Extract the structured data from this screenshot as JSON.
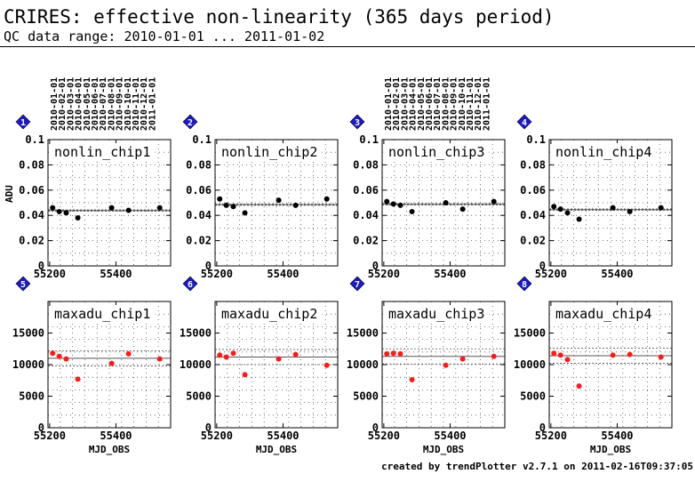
{
  "header": {
    "title": "CRIRES: effective non-linearity (365 days period)",
    "subtitle": "QC data range: 2010-01-01 ... 2011-01-02"
  },
  "footer": "created by trendPlotter v2.7.1 on 2011-02-16T09:37:05",
  "date_ticks": [
    "2010-01-01",
    "2010-02-01",
    "2010-03-01",
    "2010-04-01",
    "2010-05-01",
    "2010-06-01",
    "2010-07-01",
    "2010-08-01",
    "2010-09-01",
    "2010-10-01",
    "2010-11-01",
    "2010-12-01",
    "2011-01-01"
  ],
  "colors": {
    "top_markers": "#000000",
    "bottom_markers": "#ff1a1a",
    "badge": "#1a1acc"
  },
  "chart_data": [
    {
      "type": "scatter",
      "badge": "1",
      "title": "nonlin_chip1",
      "ylabel": "ADU",
      "xlabel": "",
      "xlim": [
        55195,
        55565
      ],
      "ylim": [
        0,
        0.1
      ],
      "yticks": [
        "0",
        "0.02",
        "0.04",
        "0.06",
        "0.08",
        "0.1"
      ],
      "xticks": [
        "55200",
        "55400"
      ],
      "ref_line": 0.0438,
      "x": [
        55209,
        55229,
        55250,
        55285,
        55387,
        55438,
        55532
      ],
      "y": [
        0.046,
        0.043,
        0.042,
        0.038,
        0.046,
        0.044,
        0.046
      ]
    },
    {
      "type": "scatter",
      "badge": "2",
      "title": "nonlin_chip2",
      "ylabel": "",
      "xlabel": "",
      "xlim": [
        55195,
        55565
      ],
      "ylim": [
        0,
        0.1
      ],
      "yticks": [
        "0",
        "0.02",
        "0.04",
        "0.06",
        "0.08",
        "0.1"
      ],
      "xticks": [
        "55200",
        "55400"
      ],
      "ref_line": 0.0485,
      "x": [
        55209,
        55229,
        55250,
        55285,
        55387,
        55438,
        55532
      ],
      "y": [
        0.053,
        0.048,
        0.047,
        0.042,
        0.052,
        0.048,
        0.053
      ]
    },
    {
      "type": "scatter",
      "badge": "3",
      "title": "nonlin_chip3",
      "ylabel": "",
      "xlabel": "",
      "xlim": [
        55195,
        55565
      ],
      "ylim": [
        0,
        0.1
      ],
      "yticks": [
        "0",
        "0.02",
        "0.04",
        "0.06",
        "0.08",
        "0.1"
      ],
      "xticks": [
        "55200",
        "55400"
      ],
      "ref_line": 0.0488,
      "x": [
        55209,
        55229,
        55250,
        55285,
        55387,
        55438,
        55532
      ],
      "y": [
        0.051,
        0.049,
        0.048,
        0.043,
        0.05,
        0.045,
        0.051
      ]
    },
    {
      "type": "scatter",
      "badge": "4",
      "title": "nonlin_chip4",
      "ylabel": "",
      "xlabel": "",
      "xlim": [
        55195,
        55565
      ],
      "ylim": [
        0,
        0.1
      ],
      "yticks": [
        "0",
        "0.02",
        "0.04",
        "0.06",
        "0.08",
        "0.1"
      ],
      "xticks": [
        "55200",
        "55400"
      ],
      "ref_line": 0.0445,
      "x": [
        55209,
        55229,
        55250,
        55285,
        55387,
        55438,
        55532
      ],
      "y": [
        0.047,
        0.045,
        0.042,
        0.037,
        0.046,
        0.043,
        0.046
      ]
    },
    {
      "type": "scatter",
      "badge": "5",
      "title": "maxadu_chip1",
      "ylabel": "",
      "xlabel": "MJD_OBS",
      "xlim": [
        55195,
        55565
      ],
      "ylim": [
        0,
        20000
      ],
      "yticks": [
        "0",
        "5000",
        "10000",
        "15000"
      ],
      "xticks": [
        "55200",
        "55400"
      ],
      "ref_line": 11000,
      "x": [
        55209,
        55229,
        55250,
        55285,
        55387,
        55438,
        55532
      ],
      "y": [
        11800,
        11300,
        10900,
        7700,
        10200,
        11700,
        10900
      ]
    },
    {
      "type": "scatter",
      "badge": "6",
      "title": "maxadu_chip2",
      "ylabel": "",
      "xlabel": "MJD_OBS",
      "xlim": [
        55195,
        55565
      ],
      "ylim": [
        0,
        20000
      ],
      "yticks": [
        "0",
        "5000",
        "10000",
        "15000"
      ],
      "xticks": [
        "55200",
        "55400"
      ],
      "ref_line": 11200,
      "x": [
        55209,
        55229,
        55250,
        55285,
        55387,
        55438,
        55532
      ],
      "y": [
        11500,
        11200,
        11800,
        8400,
        10900,
        11600,
        9900
      ]
    },
    {
      "type": "scatter",
      "badge": "7",
      "title": "maxadu_chip3",
      "ylabel": "",
      "xlabel": "MJD_OBS",
      "xlim": [
        55195,
        55565
      ],
      "ylim": [
        0,
        20000
      ],
      "yticks": [
        "0",
        "5000",
        "10000",
        "15000"
      ],
      "xticks": [
        "55200",
        "55400"
      ],
      "ref_line": 11300,
      "x": [
        55209,
        55229,
        55250,
        55285,
        55387,
        55438,
        55532
      ],
      "y": [
        11700,
        11800,
        11700,
        7600,
        9900,
        10900,
        11300
      ]
    },
    {
      "type": "scatter",
      "badge": "8",
      "title": "maxadu_chip4",
      "ylabel": "",
      "xlabel": "MJD_OBS",
      "xlim": [
        55195,
        55565
      ],
      "ylim": [
        0,
        20000
      ],
      "yticks": [
        "0",
        "5000",
        "10000",
        "15000"
      ],
      "xticks": [
        "55200",
        "55400"
      ],
      "ref_line": 11400,
      "x": [
        55209,
        55229,
        55250,
        55285,
        55387,
        55438,
        55532
      ],
      "y": [
        11800,
        11500,
        10800,
        6600,
        11500,
        11600,
        11200
      ]
    }
  ]
}
